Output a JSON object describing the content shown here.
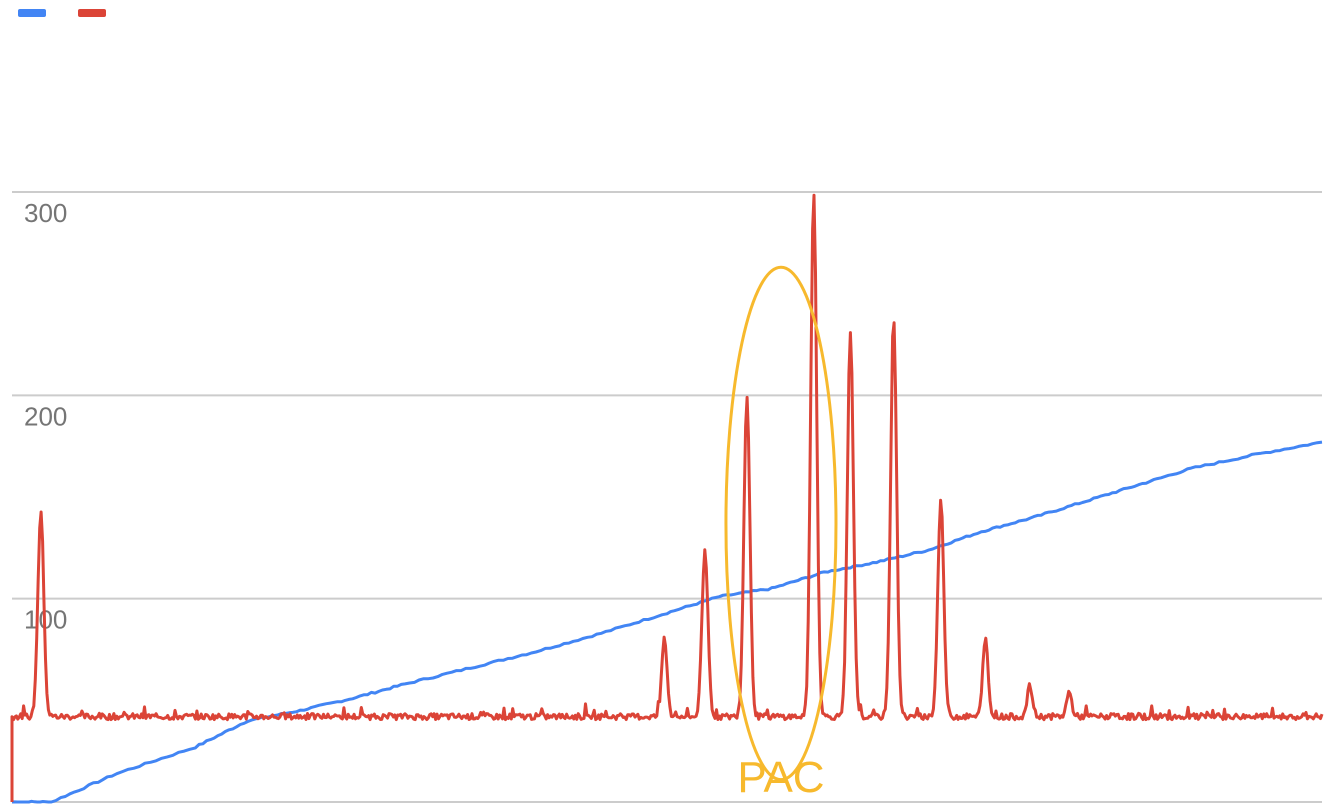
{
  "chart_data": {
    "type": "line",
    "legend": {
      "position": "top-left",
      "entries": [
        {
          "name": "",
          "color": "#4285f4"
        },
        {
          "name": "",
          "color": "#db4437"
        }
      ]
    },
    "grid": true,
    "ylim": [
      0,
      300
    ],
    "y_ticks": [
      "100",
      "200",
      "300"
    ],
    "xlim": [
      0,
      100
    ],
    "series": [
      {
        "name": "",
        "color": "#4285f4",
        "points": [
          [
            0,
            0
          ],
          [
            3,
            0
          ],
          [
            8,
            14
          ],
          [
            14,
            27
          ],
          [
            18,
            40
          ],
          [
            22,
            45
          ],
          [
            26,
            51
          ],
          [
            30,
            58
          ],
          [
            35,
            66
          ],
          [
            40,
            74
          ],
          [
            45,
            83
          ],
          [
            50,
            93
          ],
          [
            54,
            101
          ],
          [
            58,
            105
          ],
          [
            62,
            113
          ],
          [
            66,
            118
          ],
          [
            70,
            124
          ],
          [
            74,
            133
          ],
          [
            78,
            140
          ],
          [
            82,
            148
          ],
          [
            86,
            156
          ],
          [
            90,
            164
          ],
          [
            95,
            171
          ],
          [
            100,
            177
          ]
        ]
      },
      {
        "name": "",
        "color": "#db4437",
        "baseline": 42,
        "spikes": [
          {
            "x": 2.2,
            "y": 143
          },
          {
            "x": 49.8,
            "y": 81
          },
          {
            "x": 52.9,
            "y": 123
          },
          {
            "x": 56.1,
            "y": 200
          },
          {
            "x": 61.2,
            "y": 301
          },
          {
            "x": 64.0,
            "y": 231
          },
          {
            "x": 67.3,
            "y": 239
          },
          {
            "x": 70.9,
            "y": 148
          },
          {
            "x": 74.3,
            "y": 81
          },
          {
            "x": 77.7,
            "y": 57
          },
          {
            "x": 80.7,
            "y": 54
          }
        ]
      }
    ],
    "annotation": {
      "label": "PAC",
      "color": "#f7b92d",
      "center_x": 58.7,
      "center_y": 137,
      "half_width_x": 4.2,
      "half_height_y": 126
    }
  }
}
